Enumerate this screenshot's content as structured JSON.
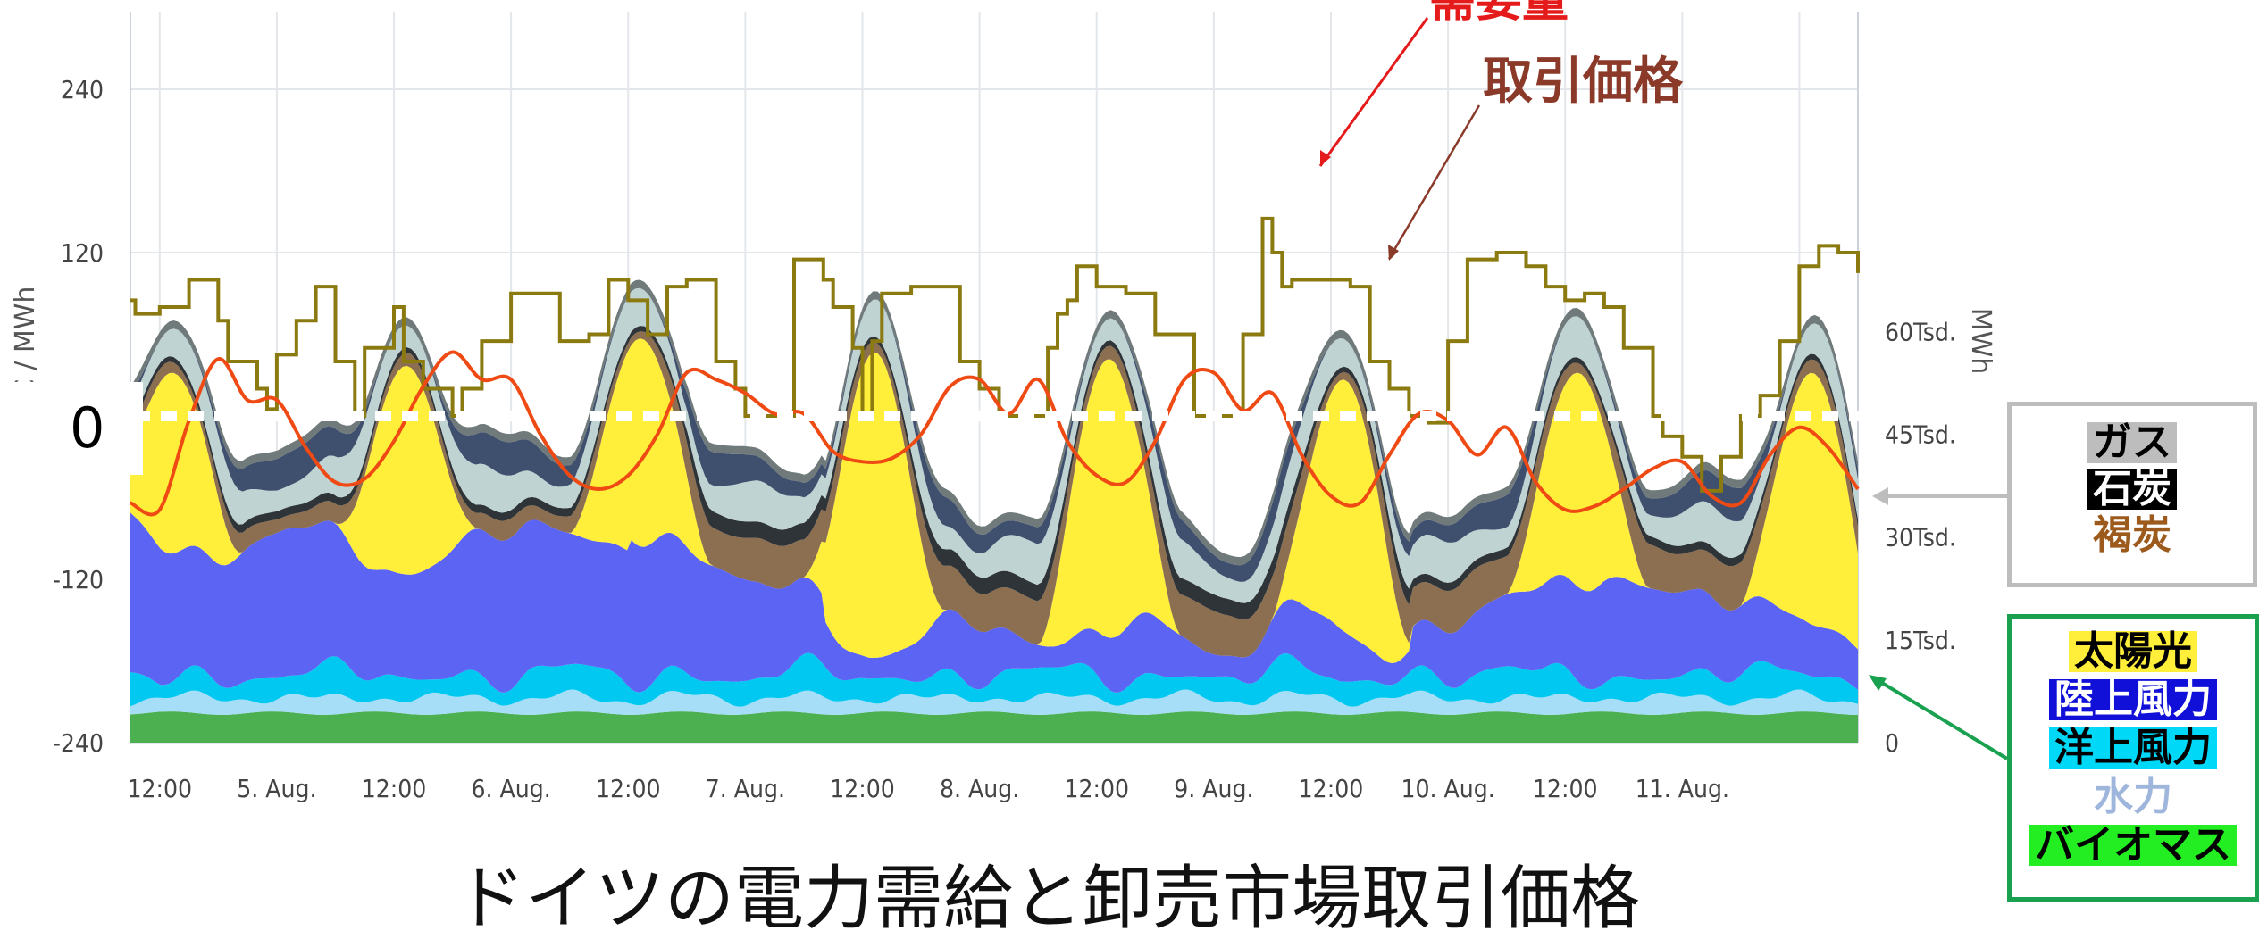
{
  "chart_data": {
    "type": "area",
    "x_tick_labels": [
      "12:00",
      "5. Aug.",
      "12:00",
      "6. Aug.",
      "12:00",
      "7. Aug.",
      "12:00",
      "8. Aug.",
      "12:00",
      "9. Aug.",
      "12:00",
      "10. Aug.",
      "12:00",
      "11. Aug."
    ],
    "x_tick_hours": [
      12,
      24,
      36,
      48,
      60,
      72,
      84,
      96,
      108,
      120,
      132,
      144,
      156,
      168
    ],
    "x_range_hours": [
      9,
      186
    ],
    "y_left": {
      "label": "€ / MWh",
      "ticks": [
        240,
        120,
        "0",
        -120,
        -240
      ],
      "range": [
        -240,
        300
      ]
    },
    "y_right": {
      "label": "MWh",
      "ticks": [
        "60Tsd.",
        "45Tsd.",
        "30Tsd.",
        "15Tsd.",
        "0"
      ],
      "range_tsd": [
        0,
        72
      ]
    },
    "zero_label": "0",
    "stack_order": [
      "バイオマス",
      "水力",
      "洋上風力",
      "陸上風力",
      "太陽光",
      "褐炭",
      "石炭",
      "ガス"
    ],
    "stack_colors": {
      "バイオマス": "#4caf50",
      "水力": "#a6def7",
      "洋上風力": "#00c8f0",
      "陸上風力": "#5c64f3",
      "太陽光": "#ffef3a",
      "褐炭": "#8c6e50",
      "石炭": "#2f3438",
      "ガス": "#bfd3d3",
      "other": "#3f4f6e",
      "top": "#707a7a"
    },
    "price_series": {
      "name": "取引価格",
      "color": "#8a7a10",
      "step_hours": [
        9,
        9.5,
        12,
        15,
        18,
        19,
        20,
        22,
        23,
        24,
        26,
        28,
        30,
        32,
        33,
        36,
        37,
        39,
        42,
        43,
        45,
        48,
        51,
        53,
        56,
        58,
        60,
        62,
        64,
        66,
        69,
        71,
        72,
        75,
        77,
        80,
        81,
        83,
        84,
        85,
        86,
        89,
        92,
        94,
        96,
        98,
        101,
        103,
        104,
        105,
        106,
        108,
        111,
        114,
        118,
        120,
        123,
        125,
        126,
        127,
        128,
        131,
        133,
        134,
        136,
        138,
        140,
        142,
        144,
        146,
        149,
        152,
        154,
        156,
        158,
        160,
        162,
        165,
        166,
        168,
        170,
        172,
        174,
        176,
        178,
        180,
        182,
        184,
        186
      ],
      "values_eur": [
        85,
        75,
        80,
        100,
        70,
        40,
        40,
        20,
        5,
        45,
        70,
        95,
        40,
        0,
        50,
        80,
        40,
        20,
        0,
        20,
        55,
        90,
        90,
        55,
        60,
        100,
        85,
        60,
        95,
        100,
        40,
        20,
        0,
        0,
        115,
        100,
        80,
        50,
        0,
        55,
        90,
        95,
        95,
        40,
        20,
        0,
        0,
        50,
        75,
        85,
        110,
        95,
        90,
        60,
        0,
        0,
        60,
        145,
        120,
        95,
        100,
        100,
        100,
        95,
        40,
        20,
        0,
        -5,
        55,
        115,
        120,
        110,
        95,
        85,
        90,
        80,
        50,
        0,
        -15,
        -30,
        -55,
        -30,
        0,
        15,
        55,
        110,
        125,
        120,
        105
      ]
    },
    "demand_series": {
      "name": "需要量",
      "color": "#f04a14",
      "hours": [
        9,
        12,
        15,
        18,
        21,
        24,
        27,
        30,
        33,
        36,
        39,
        42,
        45,
        48,
        51,
        54,
        57,
        60,
        63,
        66,
        69,
        72,
        75,
        78,
        81,
        84,
        87,
        90,
        93,
        96,
        99,
        102,
        105,
        108,
        111,
        114,
        117,
        120,
        123,
        126,
        129,
        132,
        135,
        138,
        141,
        144,
        147,
        150,
        153,
        156,
        159,
        162,
        165,
        168,
        171,
        174,
        177,
        180,
        183,
        186
      ],
      "values_tsd": [
        35.0,
        34.0,
        47.0,
        56.0,
        50.0,
        50.0,
        43.0,
        38.0,
        38.5,
        44.0,
        52.0,
        57.0,
        53.0,
        53.0,
        45.0,
        39.0,
        37.0,
        39.0,
        45.0,
        54.0,
        53.0,
        51.0,
        48.0,
        48.0,
        42.5,
        41.0,
        41.5,
        45.0,
        52.0,
        53.0,
        48.0,
        53.0,
        44.0,
        39.0,
        38.0,
        44.0,
        53.0,
        54.0,
        48.5,
        51.0,
        42.0,
        36.0,
        35.0,
        42.0,
        48.0,
        47.0,
        42.0,
        46.0,
        38.0,
        34.0,
        34.5,
        37.0,
        40.0,
        41.0,
        36.0,
        35.0,
        42.0,
        46.0,
        43.0,
        37.0
      ]
    },
    "solar_peaks_tsd": [
      54,
      55,
      59,
      57,
      56,
      53,
      54
    ],
    "annotations": {
      "demand": "需要量",
      "price": "取引価格"
    },
    "legend_fossil": [
      "ガス",
      "石炭",
      "褐炭"
    ],
    "legend_renewable": [
      "太陽光",
      "陸上風力",
      "洋上風力",
      "水力",
      "バイオマス"
    ],
    "caption": "ドイツの電力需給と卸売市場取引価格"
  }
}
